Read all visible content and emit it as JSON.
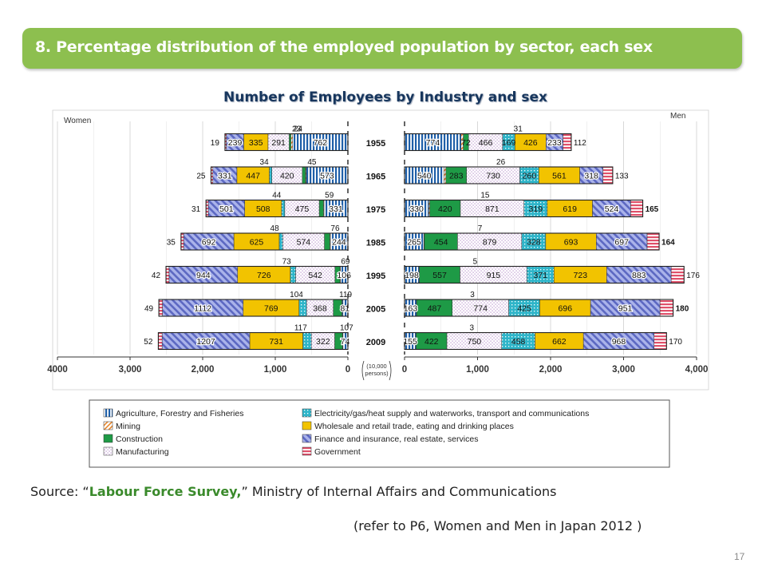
{
  "slide": {
    "title": "8. Percentage distribution of the employed population by sector, each sex",
    "source_prefix": "Source: “",
    "source_highlight": "Labour Force Survey,",
    "source_suffix": "” Ministry of Internal Affairs and Communications",
    "reference": "(refer to P6, Women and Men in Japan 2012 )",
    "page_number": "17"
  },
  "chart_data": {
    "type": "bar",
    "orientation": "horizontal",
    "layout": "population-pyramid",
    "title": "Number of Employees by Industry and sex",
    "left_label": "Women",
    "right_label": "Men",
    "unit_label": [
      "(10,000",
      "persons)"
    ],
    "women_axis_ticks": [
      "4000",
      "3,000",
      "2,000",
      "1,000",
      "0"
    ],
    "men_axis_ticks": [
      "0",
      "1,000",
      "2,000",
      "3,000",
      "4,000"
    ],
    "women_xlim": [
      0,
      4000
    ],
    "men_xlim": [
      0,
      4000
    ],
    "grid": true,
    "years": [
      "1955",
      "1965",
      "1975",
      "1985",
      "1995",
      "2005",
      "2009"
    ],
    "categories": [
      {
        "key": "agri",
        "name": "Agriculture, Forestry and Fisheries",
        "color": "#1f5fa8"
      },
      {
        "key": "mining",
        "name": "Mining",
        "color": "#e8862a"
      },
      {
        "key": "constr",
        "name": "Construction",
        "color": "#1e9a46"
      },
      {
        "key": "manuf",
        "name": "Manufacturing",
        "color": "#c7a7d9"
      },
      {
        "key": "util",
        "name": "Electricity/gas/heat supply and waterworks, transport and communications",
        "color": "#2fb5c9"
      },
      {
        "key": "retail",
        "name": "Wholesale and retail trade, eating and drinking places",
        "color": "#f2c300"
      },
      {
        "key": "finance",
        "name": "Finance and insurance, real estate, services",
        "color": "#6b77c9"
      },
      {
        "key": "gov",
        "name": "Government",
        "color": "#e0506a"
      }
    ],
    "women": [
      {
        "year": "1955",
        "values": [
          762,
          23,
          24,
          291,
          0,
          335,
          239,
          19
        ],
        "labels": [
          "762",
          "23",
          "24",
          "291",
          "",
          "335",
          "239",
          "19"
        ]
      },
      {
        "year": "1965",
        "values": [
          573,
          10,
          45,
          420,
          34,
          447,
          331,
          25
        ],
        "labels": [
          "573",
          "",
          "45",
          "420",
          "34",
          "447",
          "331",
          "25"
        ]
      },
      {
        "year": "1975",
        "values": [
          331,
          5,
          59,
          475,
          44,
          508,
          501,
          31
        ],
        "labels": [
          "331",
          "",
          "59",
          "475",
          "44",
          "508",
          "501",
          "31"
        ]
      },
      {
        "year": "1985",
        "values": [
          244,
          4,
          76,
          574,
          48,
          625,
          692,
          35
        ],
        "labels": [
          "244",
          "",
          "76",
          "574",
          "48",
          "625",
          "692",
          "35"
        ]
      },
      {
        "year": "1995",
        "values": [
          106,
          3,
          69,
          542,
          73,
          726,
          944,
          42
        ],
        "labels": [
          "106",
          "",
          "69",
          "542",
          "73",
          "726",
          "944",
          "42"
        ]
      },
      {
        "year": "2005",
        "values": [
          81,
          1,
          119,
          368,
          104,
          769,
          1112,
          49
        ],
        "labels": [
          "81",
          "",
          "119",
          "368",
          "104",
          "769",
          "1112",
          "49"
        ]
      },
      {
        "year": "2009",
        "values": [
          74,
          1,
          107,
          322,
          117,
          731,
          1207,
          52
        ],
        "labels": [
          "74",
          "",
          "107",
          "322",
          "117",
          "731",
          "1207",
          "52"
        ]
      }
    ],
    "men": [
      {
        "year": "1955",
        "values": [
          774,
          31,
          72,
          466,
          169,
          426,
          233,
          112
        ],
        "labels": [
          "774",
          "31",
          "72",
          "466",
          "169",
          "426",
          "233",
          "112"
        ]
      },
      {
        "year": "1965",
        "values": [
          540,
          26,
          283,
          730,
          260,
          561,
          318,
          133
        ],
        "labels": [
          "540",
          "26",
          "283",
          "730",
          "260",
          "561",
          "318",
          "133"
        ]
      },
      {
        "year": "1975",
        "values": [
          330,
          15,
          420,
          871,
          319,
          619,
          524,
          165
        ],
        "labels": [
          "330",
          "15",
          "420",
          "871",
          "319",
          "619",
          "524",
          "165"
        ]
      },
      {
        "year": "1985",
        "values": [
          265,
          7,
          454,
          879,
          328,
          693,
          697,
          164
        ],
        "labels": [
          "265",
          "7",
          "454",
          "879",
          "328",
          "693",
          "697",
          "164"
        ]
      },
      {
        "year": "1995",
        "values": [
          198,
          5,
          557,
          915,
          371,
          723,
          883,
          176
        ],
        "labels": [
          "198",
          "5",
          "557",
          "915",
          "371",
          "723",
          "883",
          "176"
        ]
      },
      {
        "year": "2005",
        "values": [
          163,
          3,
          487,
          774,
          425,
          696,
          951,
          180
        ],
        "labels": [
          "163",
          "3",
          "487",
          "774",
          "425",
          "696",
          "951",
          "180"
        ]
      },
      {
        "year": "2009",
        "values": [
          155,
          3,
          422,
          750,
          458,
          662,
          968,
          170
        ],
        "labels": [
          "155",
          "3",
          "422",
          "750",
          "458",
          "662",
          "968",
          "170"
        ]
      }
    ]
  }
}
